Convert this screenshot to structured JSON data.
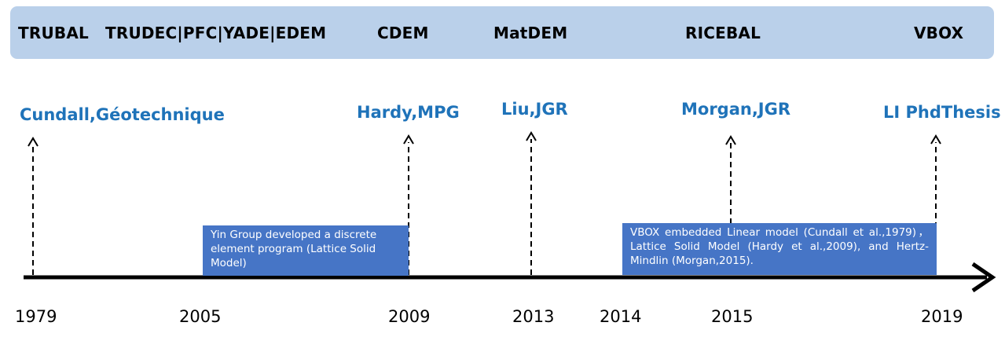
{
  "software": [
    {
      "label": "TRUBAL"
    },
    {
      "label": "TRUDEC|PFC|YADE|EDEM"
    },
    {
      "label": "CDEM"
    },
    {
      "label": "MatDEM"
    },
    {
      "label": "RICEBAL"
    },
    {
      "label": "VBOX"
    }
  ],
  "references": [
    {
      "label": "Cundall,Géotechnique"
    },
    {
      "label": "Hardy,MPG"
    },
    {
      "label": "Liu,JGR"
    },
    {
      "label": "Morgan,JGR"
    },
    {
      "label": "LI PhdThesis"
    }
  ],
  "years": [
    "1979",
    "2005",
    "2009",
    "2013",
    "2014",
    "2015",
    "2019"
  ],
  "notes": [
    {
      "text": "Yin Group developed a discrete element program (Lattice Solid Model)"
    },
    {
      "text": "VBOX embedded Linear model (Cundall et al.,1979)，Lattice Solid Model (Hardy et al.,2009), and Hertz-Mindlin (Morgan,2015)."
    }
  ],
  "colors": {
    "band": "#bad0ea",
    "reference_text": "#1f73b9",
    "note_box": "#4675c6",
    "axis": "#000000"
  }
}
